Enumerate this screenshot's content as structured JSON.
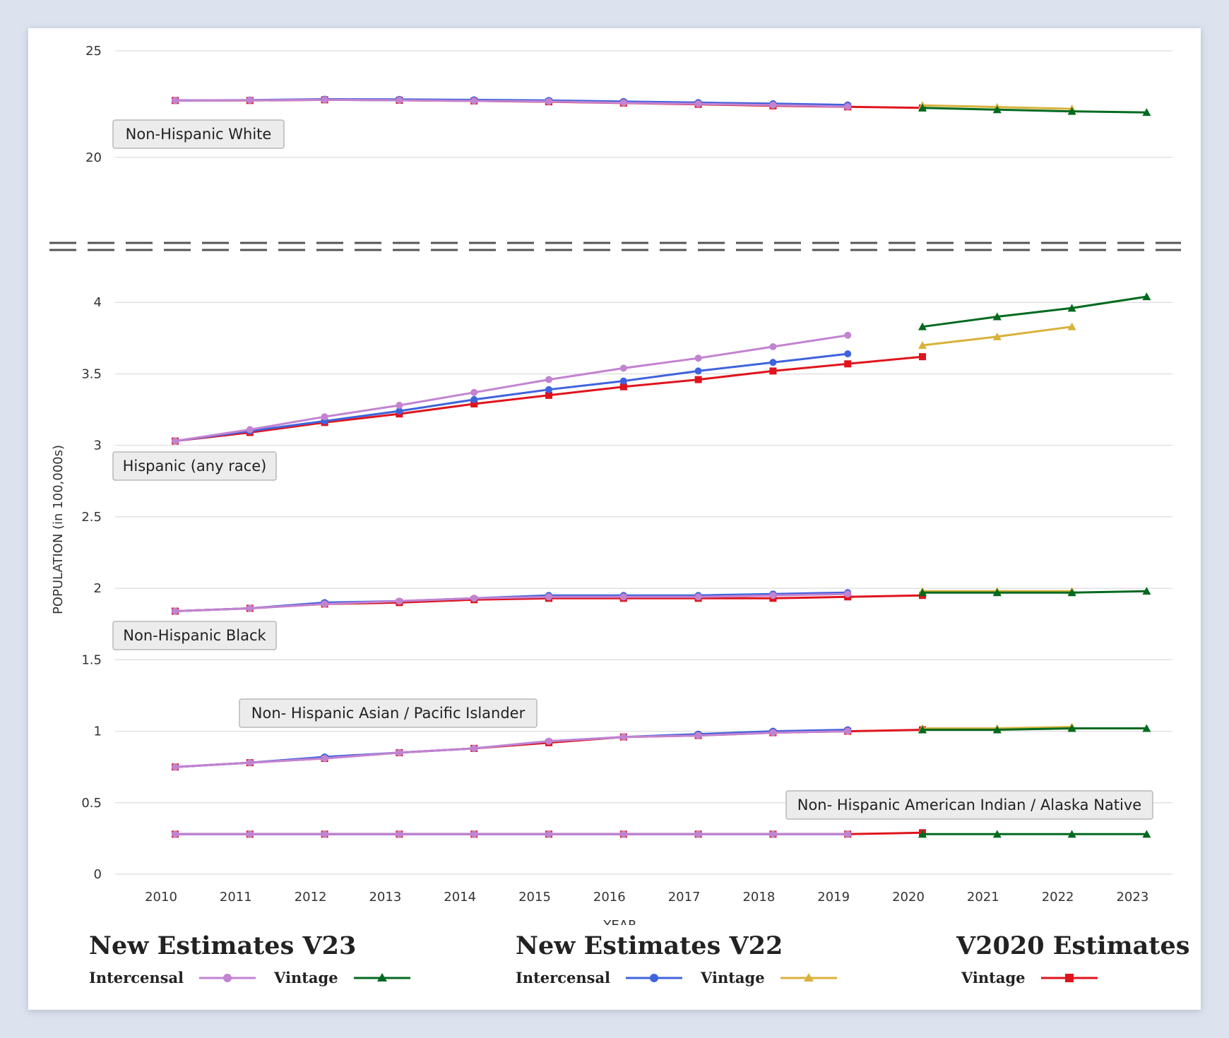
{
  "colors": {
    "v23_intercensal": "#c283d1",
    "v23_vintage": "#006a1f",
    "v22_intercensal": "#3f63dd",
    "v22_vintage": "#d8b23a",
    "v2020_vintage": "#e0141d",
    "label_bg": "#ececec"
  },
  "legend": {
    "groups": [
      {
        "title": "New Estimates V23",
        "items": [
          {
            "label": "Intercensal",
            "color_key": "v23_intercensal",
            "marker": "circle"
          },
          {
            "label": "Vintage",
            "color_key": "v23_vintage",
            "marker": "triangle"
          }
        ]
      },
      {
        "title": "New Estimates V22",
        "items": [
          {
            "label": "Intercensal",
            "color_key": "v22_intercensal",
            "marker": "circle"
          },
          {
            "label": "Vintage",
            "color_key": "v22_vintage",
            "marker": "triangle"
          }
        ]
      },
      {
        "title": "V2020 Estimates",
        "items": [
          {
            "label": "Vintage",
            "color_key": "v2020_vintage",
            "marker": "square"
          }
        ]
      }
    ]
  },
  "chart_data": {
    "type": "line",
    "xlabel": "YEAR",
    "ylabel": "POPULATION (in 100,000s)",
    "x_ticks": [
      2010,
      2011,
      2012,
      2013,
      2014,
      2015,
      2016,
      2017,
      2018,
      2019,
      2020,
      2021,
      2022,
      2023
    ],
    "axis_break": true,
    "upper_panel": {
      "ylim": [
        19,
        25
      ],
      "y_ticks": [
        20,
        25
      ]
    },
    "lower_panel": {
      "ylim": [
        0,
        4.1
      ],
      "y_ticks": [
        0,
        0.5,
        1,
        1.5,
        2,
        2.5,
        3,
        3.5,
        4
      ]
    },
    "grid": true,
    "groups": [
      {
        "label": "Non-Hispanic White",
        "panel": "upper",
        "series": [
          {
            "key": "v23_intercensal",
            "marker": "circle",
            "points": [
              [
                2010,
                22.67
              ],
              [
                2011,
                22.68
              ],
              [
                2012,
                22.7
              ],
              [
                2013,
                22.68
              ],
              [
                2014,
                22.65
              ],
              [
                2015,
                22.62
              ],
              [
                2016,
                22.56
              ],
              [
                2017,
                22.51
              ],
              [
                2018,
                22.45
              ],
              [
                2019,
                22.38
              ]
            ]
          },
          {
            "key": "v22_intercensal",
            "marker": "circle",
            "points": [
              [
                2010,
                22.67
              ],
              [
                2011,
                22.69
              ],
              [
                2012,
                22.73
              ],
              [
                2013,
                22.72
              ],
              [
                2014,
                22.7
              ],
              [
                2015,
                22.67
              ],
              [
                2016,
                22.62
              ],
              [
                2017,
                22.57
              ],
              [
                2018,
                22.52
              ],
              [
                2019,
                22.46
              ]
            ]
          },
          {
            "key": "v2020_vintage",
            "marker": "square",
            "points": [
              [
                2010,
                22.67
              ],
              [
                2011,
                22.67
              ],
              [
                2012,
                22.7
              ],
              [
                2013,
                22.68
              ],
              [
                2014,
                22.65
              ],
              [
                2015,
                22.61
              ],
              [
                2016,
                22.55
              ],
              [
                2017,
                22.49
              ],
              [
                2018,
                22.42
              ],
              [
                2019,
                22.37
              ],
              [
                2020,
                22.32
              ]
            ]
          },
          {
            "key": "v22_vintage",
            "marker": "triangle",
            "points": [
              [
                2020,
                22.44
              ],
              [
                2021,
                22.36
              ],
              [
                2022,
                22.28
              ]
            ]
          },
          {
            "key": "v23_vintage",
            "marker": "triangle",
            "points": [
              [
                2020,
                22.32
              ],
              [
                2021,
                22.24
              ],
              [
                2022,
                22.16
              ],
              [
                2023,
                22.11
              ]
            ]
          }
        ]
      },
      {
        "label": "Hispanic (any race)",
        "panel": "lower",
        "series": [
          {
            "key": "v23_intercensal",
            "marker": "circle",
            "points": [
              [
                2010,
                3.03
              ],
              [
                2011,
                3.11
              ],
              [
                2012,
                3.2
              ],
              [
                2013,
                3.28
              ],
              [
                2014,
                3.37
              ],
              [
                2015,
                3.46
              ],
              [
                2016,
                3.54
              ],
              [
                2017,
                3.61
              ],
              [
                2018,
                3.69
              ],
              [
                2019,
                3.77
              ]
            ]
          },
          {
            "key": "v22_intercensal",
            "marker": "circle",
            "points": [
              [
                2010,
                3.03
              ],
              [
                2011,
                3.1
              ],
              [
                2012,
                3.17
              ],
              [
                2013,
                3.24
              ],
              [
                2014,
                3.32
              ],
              [
                2015,
                3.39
              ],
              [
                2016,
                3.45
              ],
              [
                2017,
                3.52
              ],
              [
                2018,
                3.58
              ],
              [
                2019,
                3.64
              ]
            ]
          },
          {
            "key": "v2020_vintage",
            "marker": "square",
            "points": [
              [
                2010,
                3.03
              ],
              [
                2011,
                3.09
              ],
              [
                2012,
                3.16
              ],
              [
                2013,
                3.22
              ],
              [
                2014,
                3.29
              ],
              [
                2015,
                3.35
              ],
              [
                2016,
                3.41
              ],
              [
                2017,
                3.46
              ],
              [
                2018,
                3.52
              ],
              [
                2019,
                3.57
              ],
              [
                2020,
                3.62
              ]
            ]
          },
          {
            "key": "v22_vintage",
            "marker": "triangle",
            "points": [
              [
                2020,
                3.7
              ],
              [
                2021,
                3.76
              ],
              [
                2022,
                3.83
              ]
            ]
          },
          {
            "key": "v23_vintage",
            "marker": "triangle",
            "points": [
              [
                2020,
                3.83
              ],
              [
                2021,
                3.9
              ],
              [
                2022,
                3.96
              ],
              [
                2023,
                4.04
              ]
            ]
          }
        ]
      },
      {
        "label": "Non-Hispanic Black",
        "panel": "lower",
        "series": [
          {
            "key": "v23_intercensal",
            "marker": "circle",
            "points": [
              [
                2010,
                1.84
              ],
              [
                2011,
                1.86
              ],
              [
                2012,
                1.89
              ],
              [
                2013,
                1.91
              ],
              [
                2014,
                1.93
              ],
              [
                2015,
                1.94
              ],
              [
                2016,
                1.94
              ],
              [
                2017,
                1.94
              ],
              [
                2018,
                1.95
              ],
              [
                2019,
                1.96
              ]
            ]
          },
          {
            "key": "v22_intercensal",
            "marker": "circle",
            "points": [
              [
                2010,
                1.84
              ],
              [
                2011,
                1.86
              ],
              [
                2012,
                1.9
              ],
              [
                2013,
                1.91
              ],
              [
                2014,
                1.93
              ],
              [
                2015,
                1.95
              ],
              [
                2016,
                1.95
              ],
              [
                2017,
                1.95
              ],
              [
                2018,
                1.96
              ],
              [
                2019,
                1.97
              ]
            ]
          },
          {
            "key": "v2020_vintage",
            "marker": "square",
            "points": [
              [
                2010,
                1.84
              ],
              [
                2011,
                1.86
              ],
              [
                2012,
                1.89
              ],
              [
                2013,
                1.9
              ],
              [
                2014,
                1.92
              ],
              [
                2015,
                1.93
              ],
              [
                2016,
                1.93
              ],
              [
                2017,
                1.93
              ],
              [
                2018,
                1.93
              ],
              [
                2019,
                1.94
              ],
              [
                2020,
                1.95
              ]
            ]
          },
          {
            "key": "v22_vintage",
            "marker": "triangle",
            "points": [
              [
                2020,
                1.98
              ],
              [
                2021,
                1.98
              ],
              [
                2022,
                1.98
              ]
            ]
          },
          {
            "key": "v23_vintage",
            "marker": "triangle",
            "points": [
              [
                2020,
                1.97
              ],
              [
                2021,
                1.97
              ],
              [
                2022,
                1.97
              ],
              [
                2023,
                1.98
              ]
            ]
          }
        ]
      },
      {
        "label": "Non- Hispanic Asian / Pacific Islander",
        "panel": "lower",
        "series": [
          {
            "key": "v23_intercensal",
            "marker": "circle",
            "points": [
              [
                2010,
                0.75
              ],
              [
                2011,
                0.78
              ],
              [
                2012,
                0.81
              ],
              [
                2013,
                0.85
              ],
              [
                2014,
                0.88
              ],
              [
                2015,
                0.93
              ],
              [
                2016,
                0.96
              ],
              [
                2017,
                0.97
              ],
              [
                2018,
                0.99
              ],
              [
                2019,
                1.0
              ]
            ]
          },
          {
            "key": "v22_intercensal",
            "marker": "circle",
            "points": [
              [
                2010,
                0.75
              ],
              [
                2011,
                0.78
              ],
              [
                2012,
                0.82
              ],
              [
                2013,
                0.85
              ],
              [
                2014,
                0.88
              ],
              [
                2015,
                0.93
              ],
              [
                2016,
                0.96
              ],
              [
                2017,
                0.98
              ],
              [
                2018,
                1.0
              ],
              [
                2019,
                1.01
              ]
            ]
          },
          {
            "key": "v2020_vintage",
            "marker": "square",
            "points": [
              [
                2010,
                0.75
              ],
              [
                2011,
                0.78
              ],
              [
                2012,
                0.81
              ],
              [
                2013,
                0.85
              ],
              [
                2014,
                0.88
              ],
              [
                2015,
                0.92
              ],
              [
                2016,
                0.96
              ],
              [
                2017,
                0.97
              ],
              [
                2018,
                0.99
              ],
              [
                2019,
                1.0
              ],
              [
                2020,
                1.01
              ]
            ]
          },
          {
            "key": "v22_vintage",
            "marker": "triangle",
            "points": [
              [
                2020,
                1.02
              ],
              [
                2021,
                1.02
              ],
              [
                2022,
                1.03
              ]
            ]
          },
          {
            "key": "v23_vintage",
            "marker": "triangle",
            "points": [
              [
                2020,
                1.01
              ],
              [
                2021,
                1.01
              ],
              [
                2022,
                1.02
              ],
              [
                2023,
                1.02
              ]
            ]
          }
        ]
      },
      {
        "label": "Non- Hispanic American Indian / Alaska Native",
        "panel": "lower",
        "series": [
          {
            "key": "v23_intercensal",
            "marker": "circle",
            "points": [
              [
                2010,
                0.28
              ],
              [
                2011,
                0.28
              ],
              [
                2012,
                0.28
              ],
              [
                2013,
                0.28
              ],
              [
                2014,
                0.28
              ],
              [
                2015,
                0.28
              ],
              [
                2016,
                0.28
              ],
              [
                2017,
                0.28
              ],
              [
                2018,
                0.28
              ],
              [
                2019,
                0.28
              ]
            ]
          },
          {
            "key": "v22_intercensal",
            "marker": "circle",
            "points": [
              [
                2010,
                0.28
              ],
              [
                2011,
                0.28
              ],
              [
                2012,
                0.28
              ],
              [
                2013,
                0.28
              ],
              [
                2014,
                0.28
              ],
              [
                2015,
                0.28
              ],
              [
                2016,
                0.28
              ],
              [
                2017,
                0.28
              ],
              [
                2018,
                0.28
              ],
              [
                2019,
                0.28
              ]
            ]
          },
          {
            "key": "v2020_vintage",
            "marker": "square",
            "points": [
              [
                2010,
                0.28
              ],
              [
                2011,
                0.28
              ],
              [
                2012,
                0.28
              ],
              [
                2013,
                0.28
              ],
              [
                2014,
                0.28
              ],
              [
                2015,
                0.28
              ],
              [
                2016,
                0.28
              ],
              [
                2017,
                0.28
              ],
              [
                2018,
                0.28
              ],
              [
                2019,
                0.28
              ],
              [
                2020,
                0.29
              ]
            ]
          },
          {
            "key": "v23_vintage",
            "marker": "triangle",
            "points": [
              [
                2020,
                0.28
              ],
              [
                2021,
                0.28
              ],
              [
                2022,
                0.28
              ],
              [
                2023,
                0.28
              ]
            ]
          }
        ]
      }
    ]
  }
}
